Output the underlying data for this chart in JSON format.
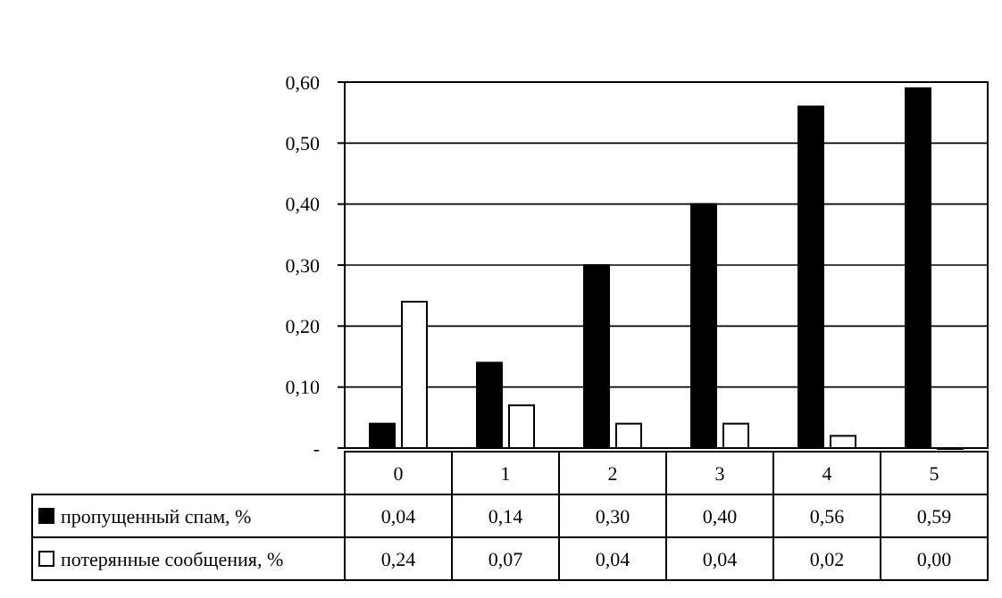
{
  "chart_data": {
    "type": "bar",
    "categories": [
      "0",
      "1",
      "2",
      "3",
      "4",
      "5"
    ],
    "series": [
      {
        "name": "пропущенный спам, %",
        "color": "#000000",
        "values": [
          0.04,
          0.14,
          0.3,
          0.4,
          0.56,
          0.59
        ],
        "value_labels": [
          "0,04",
          "0,14",
          "0,30",
          "0,40",
          "0,56",
          "0,59"
        ]
      },
      {
        "name": "потерянные сообщения, %",
        "color": "#ffffff",
        "values": [
          0.24,
          0.07,
          0.04,
          0.04,
          0.02,
          0.0
        ],
        "value_labels": [
          "0,24",
          "0,07",
          "0,04",
          "0,04",
          "0,02",
          "0,00"
        ]
      }
    ],
    "ylim": [
      0,
      0.6
    ],
    "yticks": [
      {
        "value": 0,
        "label": "-"
      },
      {
        "value": 0.1,
        "label": "0,10"
      },
      {
        "value": 0.2,
        "label": "0,20"
      },
      {
        "value": 0.3,
        "label": "0,30"
      },
      {
        "value": 0.4,
        "label": "0,40"
      },
      {
        "value": 0.5,
        "label": "0,50"
      },
      {
        "value": 0.6,
        "label": "0,60"
      }
    ],
    "grid": "y",
    "legend": "bottom"
  }
}
